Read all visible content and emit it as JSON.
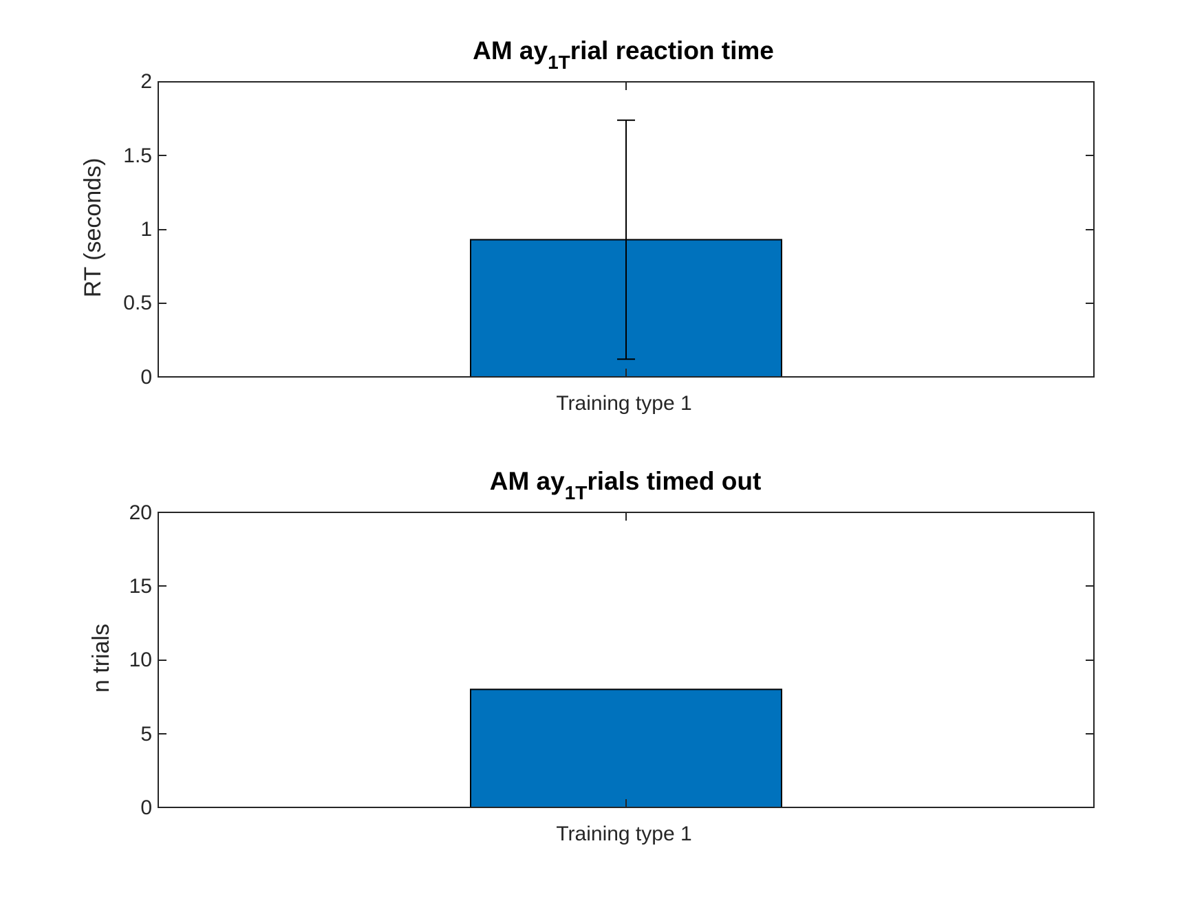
{
  "chart_data": [
    {
      "type": "bar",
      "title": {
        "prefix": "AM ay",
        "subscript": "1T",
        "suffix": "rial reaction time"
      },
      "ylabel": "RT (seconds)",
      "xlabel": "",
      "categories": [
        "Training type 1"
      ],
      "values": [
        0.93
      ],
      "error": {
        "lower": [
          0.12
        ],
        "upper": [
          1.74
        ]
      },
      "ylim": [
        0,
        2
      ],
      "yticks": [
        "0",
        "0.5",
        "1",
        "1.5",
        "2"
      ],
      "bar_color": "#0072BD",
      "grid": false
    },
    {
      "type": "bar",
      "title": {
        "prefix": "AM ay",
        "subscript": "1T",
        "suffix": "rials timed out"
      },
      "ylabel": "n trials",
      "xlabel": "",
      "categories": [
        "Training type 1"
      ],
      "values": [
        8
      ],
      "ylim": [
        0,
        20
      ],
      "yticks": [
        "0",
        "5",
        "10",
        "15",
        "20"
      ],
      "bar_color": "#0072BD",
      "grid": false
    }
  ]
}
